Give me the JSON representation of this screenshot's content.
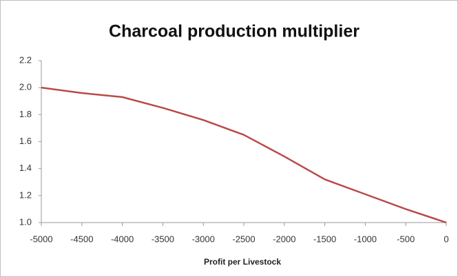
{
  "chart_data": {
    "type": "line",
    "title": "Charcoal production multiplier",
    "x_label": "Profit per Livestock",
    "x": [
      -5000,
      -4500,
      -4000,
      -3500,
      -3000,
      -2500,
      -2000,
      -1500,
      -1000,
      -500,
      0
    ],
    "series": [
      {
        "name": "Multiplier",
        "color": "#b94a48",
        "values": [
          2.0,
          1.96,
          1.93,
          1.85,
          1.76,
          1.65,
          1.49,
          1.32,
          1.21,
          1.1,
          1.0
        ]
      }
    ],
    "xlim": [
      -5000,
      0
    ],
    "xticks": [
      -5000,
      -4500,
      -4000,
      -3500,
      -3000,
      -2500,
      -2000,
      -1500,
      -1000,
      -500,
      0
    ],
    "ylim": [
      1.0,
      2.2
    ],
    "yticks": [
      {
        "value": 1.0,
        "label": "1.0"
      },
      1.2,
      1.4,
      1.6,
      1.8,
      {
        "value": 2.0,
        "label": "2.0"
      },
      2.2
    ],
    "grid": false,
    "legend": false
  }
}
